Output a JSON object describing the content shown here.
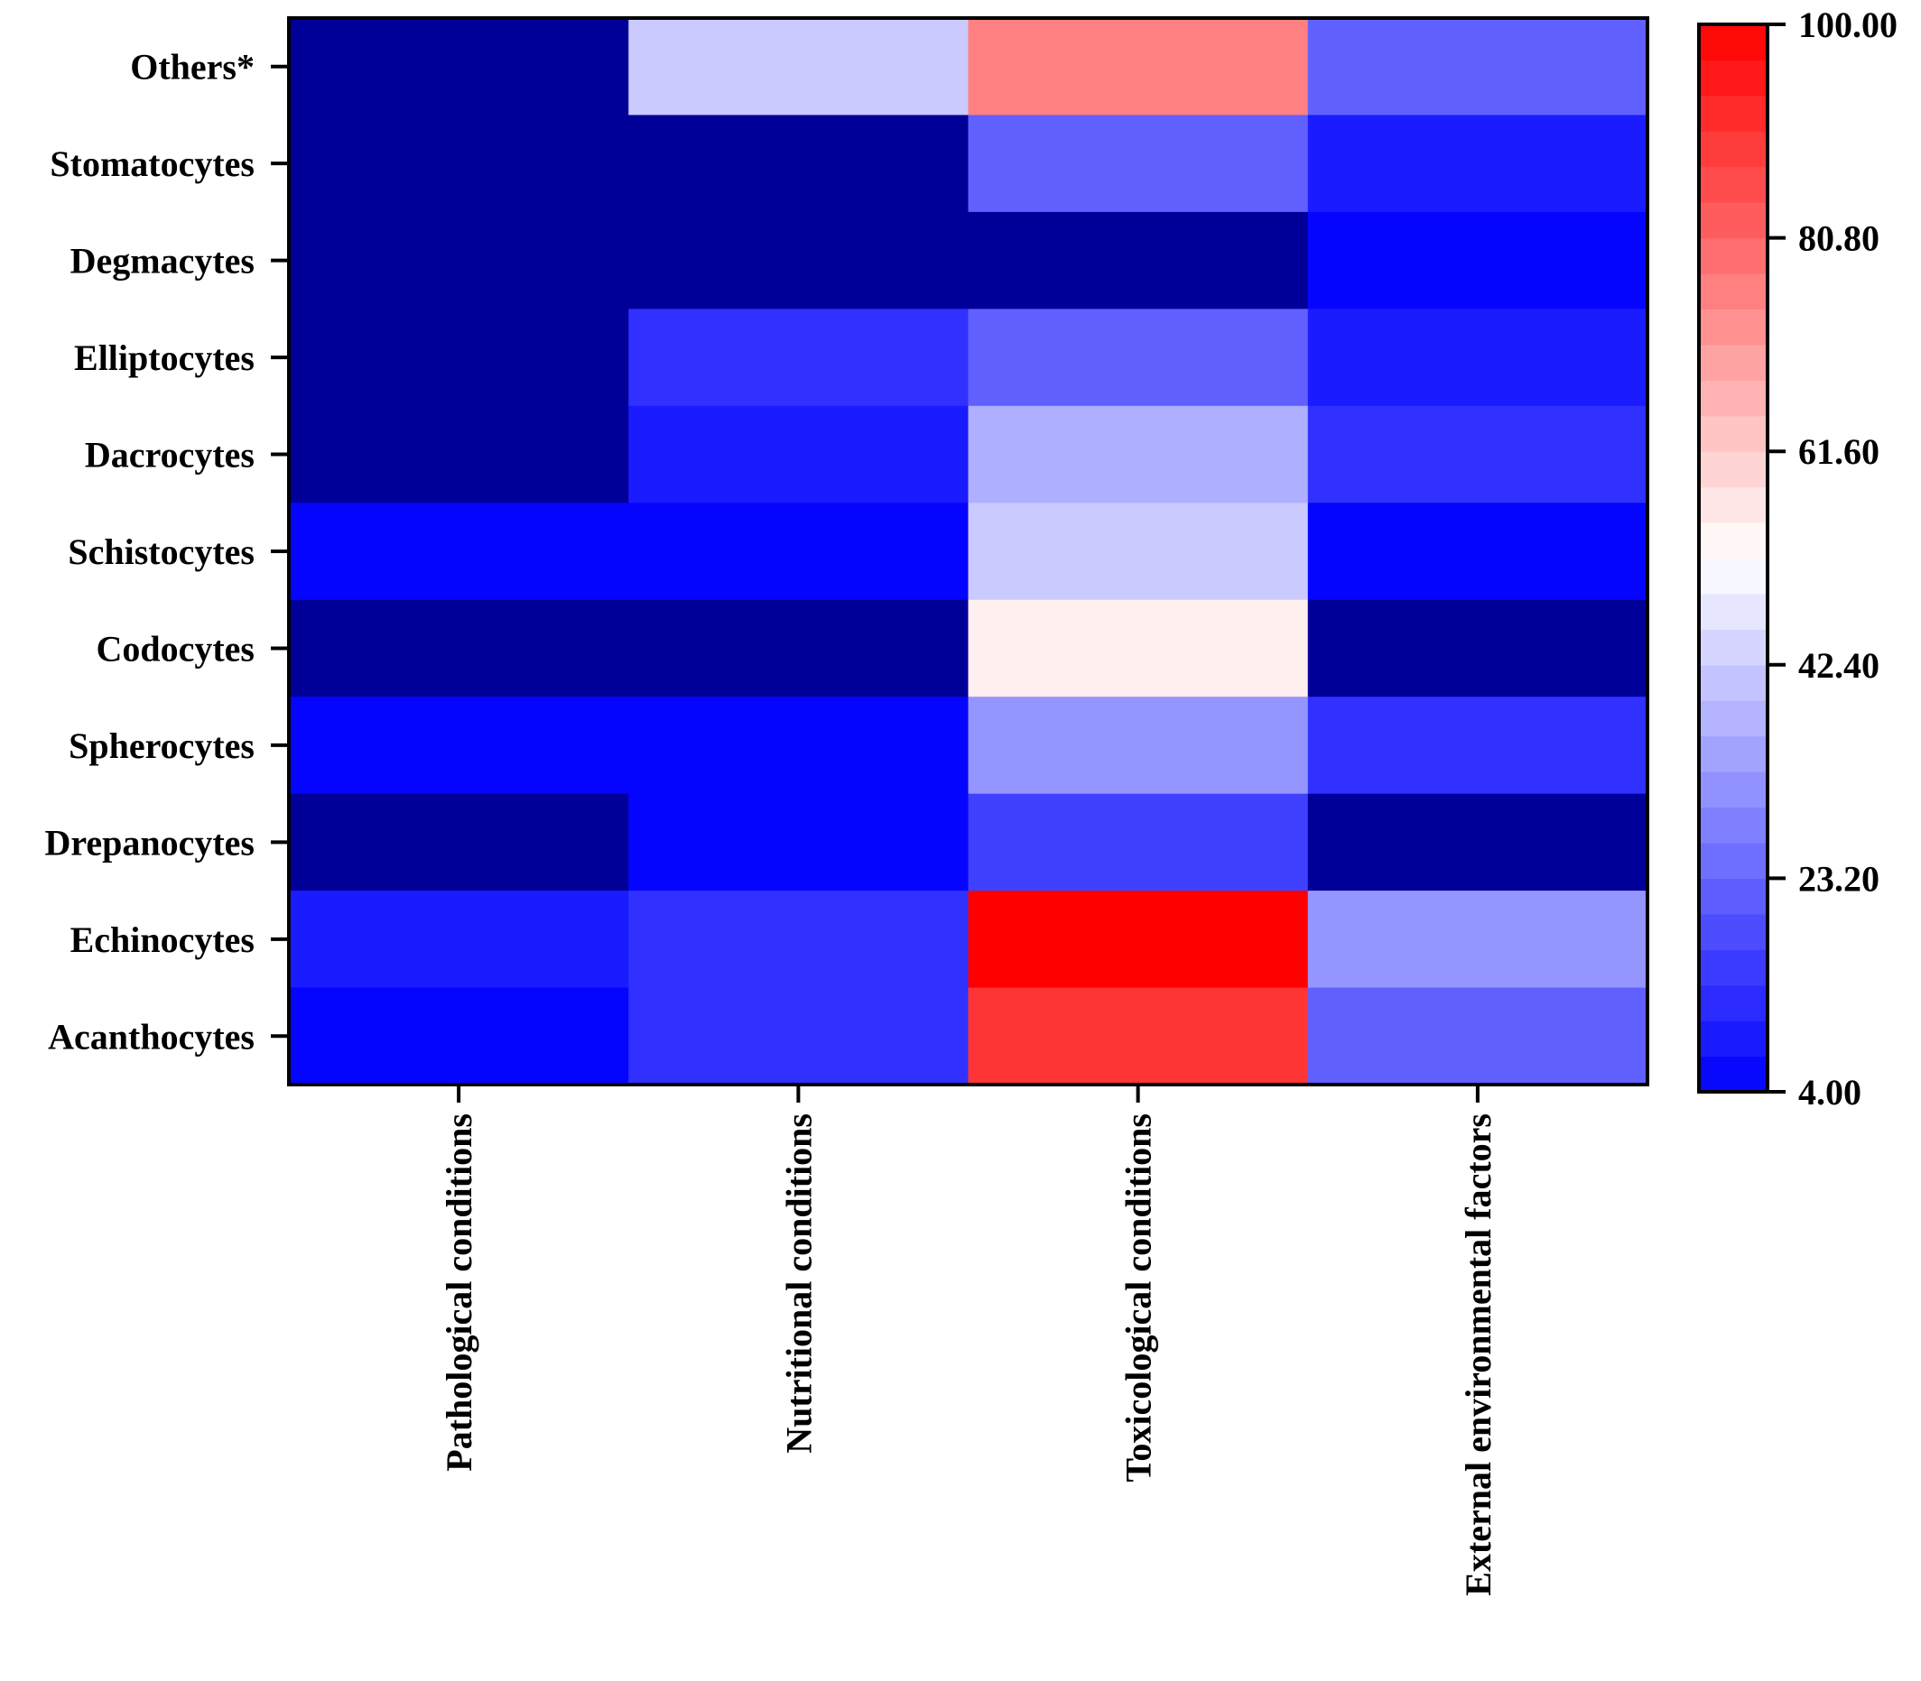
{
  "chart_data": {
    "type": "heatmap",
    "title": "",
    "xlabel": "",
    "ylabel": "",
    "rows": [
      "Others*",
      "Stomatocytes",
      "Degmacytes",
      "Elliptocytes",
      "Dacrocytes",
      "Schistocytes",
      "Codocytes",
      "Spherocytes",
      "Drepanocytes",
      "Echinocytes",
      "Acanthocytes"
    ],
    "columns": [
      "Pathological conditions",
      "Nutritional conditions",
      "Toxicological conditions",
      "External environmental factors"
    ],
    "values": [
      [
        0,
        42,
        76,
        22
      ],
      [
        0,
        0,
        22,
        9
      ],
      [
        0,
        0,
        0,
        5
      ],
      [
        0,
        13,
        22,
        9
      ],
      [
        0,
        9,
        37,
        13
      ],
      [
        5,
        5,
        42,
        5
      ],
      [
        0,
        0,
        55,
        0
      ],
      [
        5,
        5,
        32,
        13
      ],
      [
        0,
        5,
        16,
        0
      ],
      [
        9,
        13,
        100,
        32
      ],
      [
        5,
        13,
        90,
        22
      ]
    ],
    "colorbar": {
      "min": 4.0,
      "max": 100.0,
      "ticks": [
        "100.00",
        "80.80",
        "61.60",
        "42.40",
        "23.20",
        "4.00"
      ],
      "tick_values": [
        100,
        80.8,
        61.6,
        42.4,
        23.2,
        4.0
      ],
      "steps": 30
    },
    "colors": {
      "low": "#0000ff",
      "mid": "#ffffff",
      "high": "#ff0000",
      "under": "#000099"
    }
  }
}
